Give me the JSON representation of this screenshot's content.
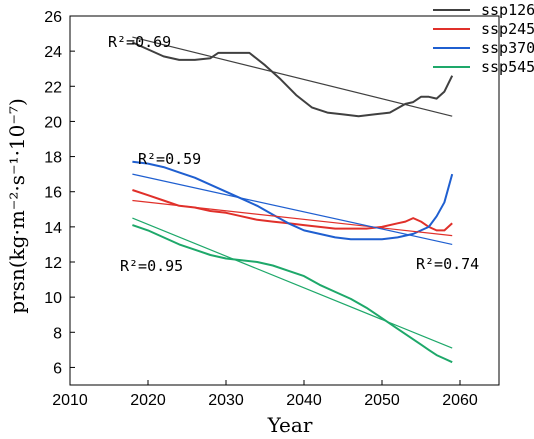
{
  "chart_data": {
    "type": "line",
    "xlabel": "Year",
    "ylabel": "prsn(kg·m⁻²·s⁻¹·10⁻⁷)",
    "xlim": [
      2010,
      2065
    ],
    "ylim": [
      5,
      26
    ],
    "xticks": [
      2010,
      2020,
      2030,
      2040,
      2050,
      2060
    ],
    "yticks": [
      6,
      8,
      10,
      12,
      14,
      16,
      18,
      20,
      22,
      24,
      26
    ],
    "legend_position": "top-right",
    "grid": false,
    "series": [
      {
        "name": "ssp126",
        "color": "#404040",
        "x": [
          2018,
          2020,
          2022,
          2024,
          2025,
          2026,
          2028,
          2029,
          2031,
          2033,
          2035,
          2037,
          2039,
          2041,
          2043,
          2045,
          2047,
          2049,
          2051,
          2053,
          2054,
          2055,
          2056,
          2057,
          2058,
          2059
        ],
        "values": [
          24.5,
          24.1,
          23.7,
          23.5,
          23.5,
          23.5,
          23.6,
          23.9,
          23.9,
          23.9,
          23.2,
          22.4,
          21.5,
          20.8,
          20.5,
          20.4,
          20.3,
          20.4,
          20.5,
          21.0,
          21.1,
          21.4,
          21.4,
          21.3,
          21.7,
          22.6
        ],
        "trend": {
          "x": [
            2018,
            2059
          ],
          "values": [
            24.8,
            20.3
          ]
        },
        "r2_label": "R²=0.69"
      },
      {
        "name": "ssp245",
        "color": "#e0302a",
        "x": [
          2018,
          2020,
          2022,
          2024,
          2026,
          2028,
          2030,
          2032,
          2034,
          2036,
          2038,
          2040,
          2042,
          2044,
          2046,
          2048,
          2050,
          2052,
          2053,
          2054,
          2055,
          2056,
          2057,
          2058,
          2059
        ],
        "values": [
          16.1,
          15.8,
          15.5,
          15.2,
          15.1,
          14.9,
          14.8,
          14.6,
          14.4,
          14.3,
          14.2,
          14.1,
          14.0,
          13.9,
          13.9,
          13.9,
          14.0,
          14.2,
          14.3,
          14.5,
          14.3,
          14.0,
          13.8,
          13.8,
          14.2
        ],
        "trend": {
          "x": [
            2018,
            2059
          ],
          "values": [
            15.5,
            13.5
          ]
        },
        "r2_label": "R²=0.74"
      },
      {
        "name": "ssp370",
        "color": "#1f5fd0",
        "x": [
          2018,
          2020,
          2022,
          2024,
          2026,
          2028,
          2030,
          2032,
          2034,
          2036,
          2038,
          2040,
          2042,
          2044,
          2046,
          2048,
          2050,
          2052,
          2054,
          2055,
          2056,
          2057,
          2058,
          2059
        ],
        "values": [
          17.7,
          17.6,
          17.4,
          17.1,
          16.8,
          16.4,
          16.0,
          15.6,
          15.2,
          14.7,
          14.2,
          13.8,
          13.6,
          13.4,
          13.3,
          13.3,
          13.3,
          13.4,
          13.6,
          13.8,
          14.0,
          14.6,
          15.4,
          17.0
        ],
        "trend": {
          "x": [
            2018,
            2059
          ],
          "values": [
            17.0,
            13.0
          ]
        },
        "r2_label": "R²=0.59"
      },
      {
        "name": "ssp545",
        "color": "#1ea86a",
        "x": [
          2018,
          2020,
          2022,
          2024,
          2026,
          2028,
          2030,
          2032,
          2034,
          2036,
          2038,
          2040,
          2042,
          2044,
          2046,
          2048,
          2050,
          2052,
          2054,
          2055,
          2056,
          2057,
          2058,
          2059
        ],
        "values": [
          14.1,
          13.8,
          13.4,
          13.0,
          12.7,
          12.4,
          12.2,
          12.1,
          12.0,
          11.8,
          11.5,
          11.2,
          10.7,
          10.3,
          9.9,
          9.4,
          8.8,
          8.2,
          7.6,
          7.3,
          7.0,
          6.7,
          6.5,
          6.3
        ],
        "trend": {
          "x": [
            2018,
            2059
          ],
          "values": [
            14.5,
            7.1
          ]
        },
        "r2_label": "R²=0.95"
      }
    ]
  }
}
